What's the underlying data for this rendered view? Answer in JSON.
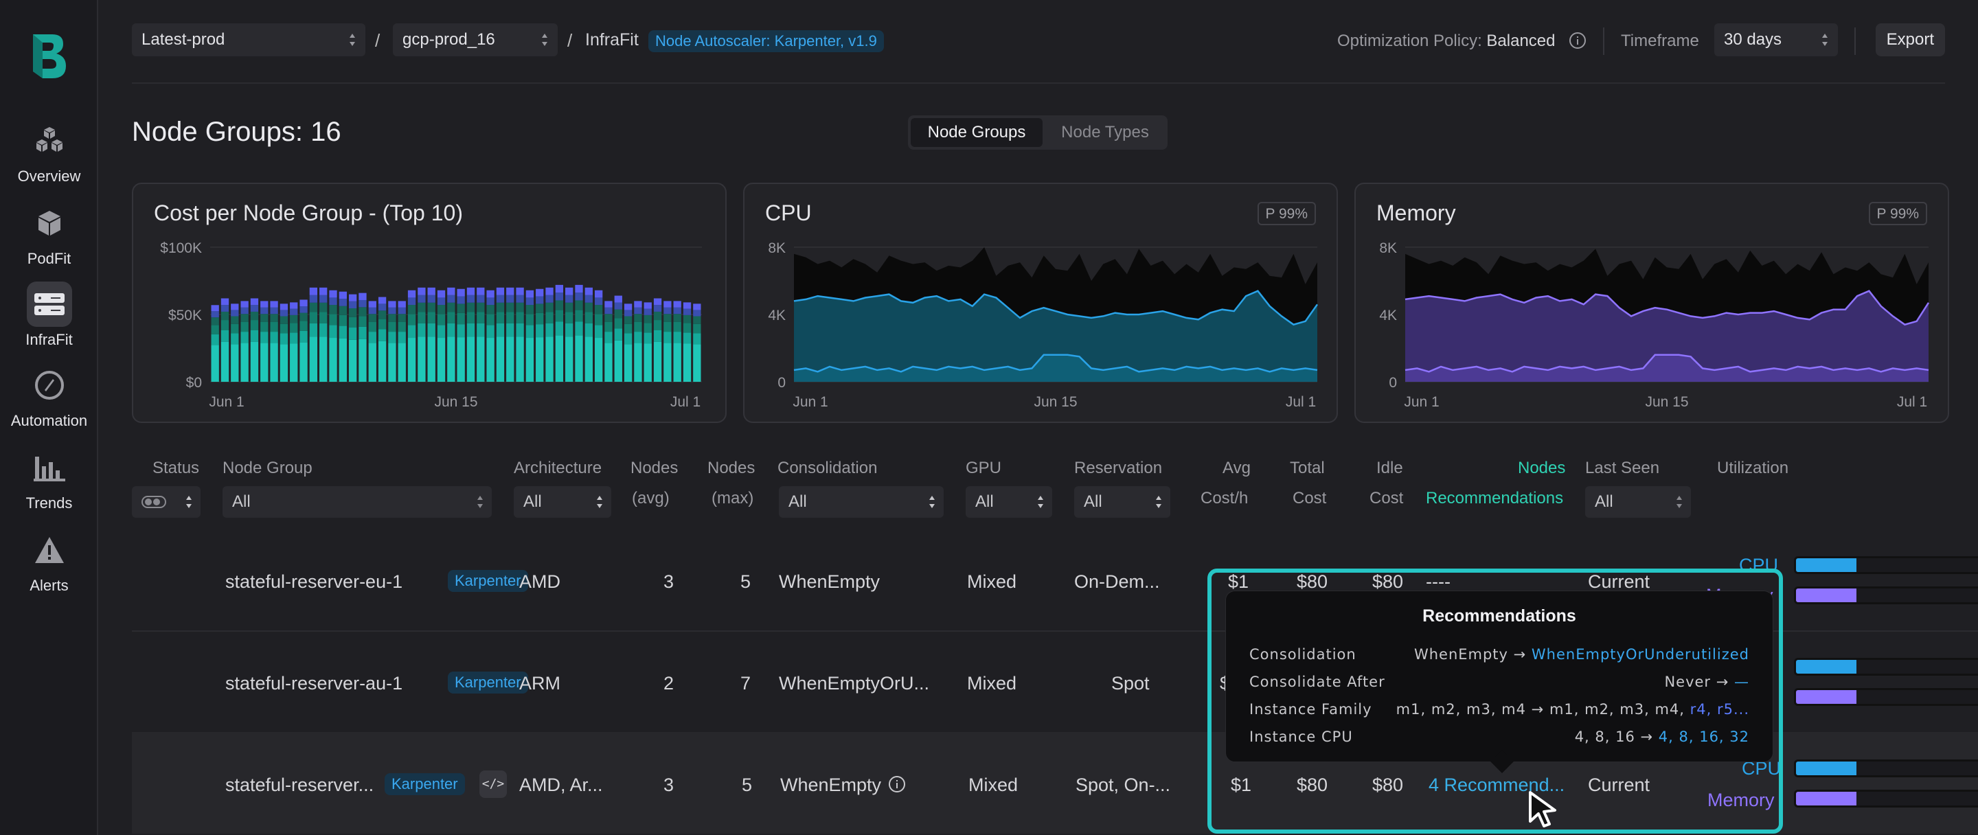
{
  "nav": {
    "items": [
      {
        "label": "Overview",
        "icon": "cubes-icon"
      },
      {
        "label": "PodFit",
        "icon": "cube-icon"
      },
      {
        "label": "InfraFit",
        "icon": "server-icon",
        "active": true
      },
      {
        "label": "Automation",
        "icon": "compass-icon"
      },
      {
        "label": "Trends",
        "icon": "bar-chart-icon"
      },
      {
        "label": "Alerts",
        "icon": "warning-icon"
      }
    ]
  },
  "topbar": {
    "env_select": "Latest-prod",
    "cluster_select": "gcp-prod_16",
    "sep1": "/",
    "sep2": "/",
    "crumb": "InfraFit",
    "autoscaler": "Node Autoscaler: Karpenter, v1.9",
    "policy_label": "Optimization Policy:",
    "policy_value": "Balanced",
    "timeframe_label": "Timeframe",
    "timeframe_value": "30 days",
    "export": "Export"
  },
  "page": {
    "title": "Node Groups: 16",
    "toggle_on": "Node Groups",
    "toggle_off": "Node Types"
  },
  "charts": {
    "cost": {
      "title": "Cost per Node Group - (Top 10)"
    },
    "cpu": {
      "title": "CPU",
      "badge": "P 99%"
    },
    "memory": {
      "title": "Memory",
      "badge": "P 99%"
    }
  },
  "chart_data": [
    {
      "type": "bar",
      "title": "Cost per Node Group - (Top 10)",
      "y_ticks": [
        "$100K",
        "$50K",
        "$0"
      ],
      "x_ticks": [
        "Jun 1",
        "Jun 15",
        "Jul 1"
      ],
      "ylim": [
        0,
        100000
      ],
      "stacked": true,
      "colors": [
        "#1fc7b8",
        "#15a99a",
        "#13806f",
        "#16665a",
        "#3a4fb0",
        "#5b5ef0"
      ],
      "totals": [
        57000,
        62000,
        58000,
        60000,
        62000,
        60000,
        60000,
        58000,
        59000,
        61000,
        70000,
        70000,
        68000,
        67000,
        65000,
        66000,
        60000,
        63000,
        60000,
        60000,
        68000,
        70000,
        70000,
        68000,
        70000,
        69000,
        70000,
        70000,
        68000,
        70000,
        70000,
        70000,
        68000,
        69000,
        70000,
        72000,
        70000,
        72000,
        70000,
        68000,
        60000,
        64000,
        58000,
        60000,
        59000,
        62000,
        60000,
        60000,
        59000,
        58000
      ]
    },
    {
      "type": "area",
      "title": "CPU",
      "y_ticks": [
        "8K",
        "4K",
        "0"
      ],
      "x_ticks": [
        "Jun 1",
        "Jun 15",
        "Jul 1"
      ],
      "ylim": [
        0,
        8000
      ],
      "series": [
        {
          "color": "#0a0a0a",
          "values": [
            7600,
            7400,
            7000,
            7200,
            6800,
            7300,
            7000,
            6500,
            7500,
            7200,
            7000,
            7100,
            6600,
            6900,
            6800,
            7200,
            8000,
            6300,
            6900,
            7100,
            6200,
            7500,
            6700,
            6600,
            7600,
            6000,
            7000,
            7300,
            6400,
            7900,
            6900,
            7200,
            6400,
            7000,
            6500,
            7600,
            6300,
            6800,
            6700,
            7100,
            6300,
            6200,
            7600,
            5800,
            7100
          ]
        },
        {
          "color": "#0f4a5c",
          "values": [
            4800,
            4900,
            5100,
            5000,
            4900,
            4800,
            5000,
            5100,
            5200,
            4800,
            4700,
            5000,
            5100,
            4800,
            4900,
            4500,
            5200,
            5000,
            4400,
            3800,
            4200,
            4400,
            4200,
            4000,
            3900,
            3800,
            3900,
            4100,
            4000,
            4000,
            4100,
            4200,
            4000,
            3800,
            3700,
            4100,
            4300,
            4200,
            5100,
            5400,
            4500,
            3900,
            3400,
            3600,
            4600
          ]
        },
        {
          "color": "#0f5f76",
          "values": [
            700,
            800,
            600,
            900,
            700,
            800,
            900,
            700,
            800,
            600,
            900,
            800,
            700,
            900,
            800,
            900,
            700,
            800,
            900,
            700,
            800,
            1600,
            1600,
            1600,
            1500,
            800,
            700,
            800,
            900,
            600,
            700,
            800,
            700,
            900,
            800,
            900,
            700,
            800,
            700,
            800,
            600,
            800,
            700,
            800,
            700
          ]
        }
      ]
    },
    {
      "type": "area",
      "title": "Memory",
      "y_ticks": [
        "8K",
        "4K",
        "0"
      ],
      "x_ticks": [
        "Jun 1",
        "Jun 15",
        "Jul 1"
      ],
      "ylim": [
        0,
        8000
      ],
      "series": [
        {
          "color": "#0a0a0a",
          "values": [
            7600,
            7300,
            7000,
            7200,
            6900,
            7400,
            7100,
            6400,
            7500,
            7200,
            7000,
            7100,
            6600,
            7000,
            6800,
            7200,
            7900,
            6300,
            7000,
            7200,
            6100,
            7400,
            6800,
            6700,
            7600,
            6100,
            7000,
            7300,
            6500,
            7800,
            6900,
            7200,
            6400,
            7000,
            6600,
            7700,
            6400,
            6800,
            6600,
            7100,
            6400,
            6200,
            7600,
            5800,
            7100
          ]
        },
        {
          "color": "#3a2d6e",
          "values": [
            4900,
            5000,
            5100,
            5000,
            4900,
            4800,
            5000,
            5100,
            5200,
            4900,
            4700,
            5000,
            5100,
            4800,
            4900,
            4600,
            5200,
            5100,
            4400,
            3900,
            4200,
            4400,
            4300,
            4100,
            3900,
            3800,
            3900,
            4100,
            4000,
            4100,
            4100,
            4200,
            4000,
            3800,
            3700,
            4100,
            4300,
            4300,
            5100,
            5400,
            4500,
            3900,
            3400,
            3600,
            4700
          ]
        },
        {
          "color": "#4c3a94",
          "values": [
            700,
            800,
            600,
            900,
            700,
            800,
            900,
            700,
            800,
            600,
            900,
            800,
            700,
            900,
            800,
            900,
            700,
            800,
            900,
            700,
            800,
            1600,
            1600,
            1600,
            1500,
            800,
            700,
            800,
            900,
            600,
            700,
            800,
            700,
            900,
            800,
            900,
            700,
            800,
            700,
            800,
            600,
            800,
            700,
            800,
            700
          ]
        }
      ]
    }
  ],
  "table": {
    "headers": {
      "status": "Status",
      "node_group": "Node Group",
      "architecture": "Architecture",
      "nodes_avg_1": "Nodes",
      "nodes_avg_2": "(avg)",
      "nodes_max_1": "Nodes",
      "nodes_max_2": "(max)",
      "consolidation": "Consolidation",
      "gpu": "GPU",
      "reservation": "Reservation",
      "avg_1": "Avg",
      "avg_2": "Cost/h",
      "total_1": "Total",
      "total_2": "Cost",
      "idle_1": "Idle",
      "idle_2": "Cost",
      "rec_1": "Nodes",
      "rec_2": "Recommendations",
      "last_seen": "Last Seen",
      "utilization": "Utilization"
    },
    "filters": {
      "node_group": "All",
      "architecture": "All",
      "consolidation": "All",
      "gpu": "All",
      "reservation": "All",
      "last_seen": "All"
    },
    "rows": [
      {
        "name": "stateful-reserver-eu-1",
        "badge": "Karpenter",
        "arch": "AMD",
        "nodes_avg": "3",
        "nodes_max": "5",
        "consolidation": "WhenEmpty",
        "gpu": "Mixed",
        "reservation": "On-Dem...",
        "avg": "$1",
        "total": "$80",
        "idle": "$80",
        "rec": "----",
        "last_seen": "Current",
        "cpu_label": "CPU",
        "mem_label": "Memory",
        "cpu_util": 0.3,
        "mem_util": 0.3
      },
      {
        "name": "stateful-reserver-au-1",
        "badge": "Karpenter",
        "arch": "ARM",
        "nodes_avg": "2",
        "nodes_max": "7",
        "consolidation": "WhenEmptyOrU...",
        "gpu": "Mixed",
        "reservation": "Spot",
        "avg": "$",
        "cpu_util": 0.3,
        "mem_util": 0.3
      },
      {
        "name": "stateful-reserver...",
        "badge": "Karpenter",
        "code": "</>",
        "arch": "AMD, Ar...",
        "nodes_avg": "3",
        "nodes_max": "5",
        "consolidation": "WhenEmpty",
        "gpu": "Mixed",
        "reservation": "Spot, On-...",
        "avg": "$1",
        "total": "$80",
        "idle": "$80",
        "rec": "4 Recommend...",
        "last_seen": "Current",
        "cpu_label": "CPU",
        "mem_label": "Memory",
        "cpu_util": 0.3,
        "mem_util": 0.3
      }
    ]
  },
  "tooltip": {
    "title": "Recommendations",
    "rows": [
      {
        "key": "Consolidation",
        "from": "WhenEmpty → ",
        "to": "WhenEmptyOrUnderutilized"
      },
      {
        "key": "Consolidate After",
        "from": "Never → ",
        "to": "—"
      },
      {
        "key": "Instance Family",
        "from": "m1, m2, m3, m4 → m1, m2, m3, m4, ",
        "to": "r4, r5..."
      },
      {
        "key": "Instance CPU",
        "from": "4, 8, 16 → ",
        "to": "4, 8, 16, 32"
      }
    ]
  },
  "colors": {
    "accent_teal": "#26c6c6",
    "cpu_blue": "#2aa3e8",
    "memory_purple": "#8f74ff",
    "badge_blue": "#3aa8f0",
    "rec_green": "#2fd3b4"
  }
}
